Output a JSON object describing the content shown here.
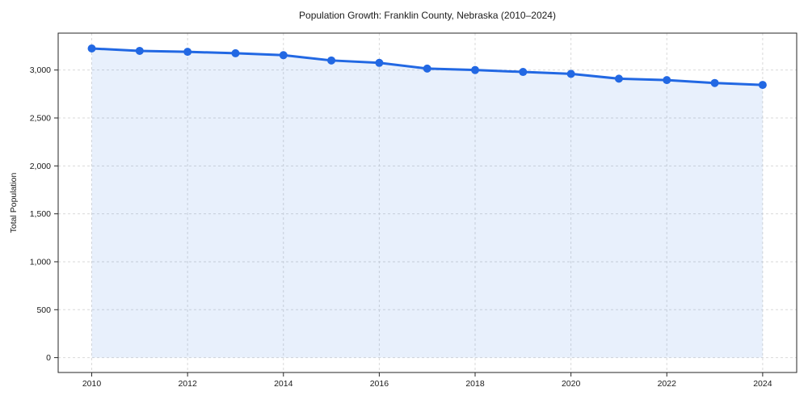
{
  "chart_data": {
    "type": "line",
    "title": "Population Growth: Franklin County, Nebraska (2010–2024)",
    "xlabel": "",
    "ylabel": "Total Population",
    "x": [
      2010,
      2011,
      2012,
      2013,
      2014,
      2015,
      2016,
      2017,
      2018,
      2019,
      2020,
      2021,
      2022,
      2023,
      2024
    ],
    "series": [
      {
        "name": "Total Population",
        "values": [
          3225,
          3200,
          3190,
          3175,
          3155,
          3100,
          3075,
          3015,
          3000,
          2980,
          2960,
          2910,
          2895,
          2865,
          2845
        ]
      }
    ],
    "xticks": [
      2010,
      2012,
      2014,
      2016,
      2018,
      2020,
      2022,
      2024
    ],
    "yticks": [
      0,
      500,
      1000,
      1500,
      2000,
      2500,
      3000
    ],
    "xlim": [
      2009.3,
      2024.71
    ],
    "ylim": [
      -155,
      3385
    ],
    "grid": true,
    "legend": false,
    "colors": {
      "line": "#2268e3",
      "marker": "#2268e3",
      "area_fill": "rgba(34, 104, 227, 0.10)",
      "gridline": "#d9d9d9",
      "axis_border": "#262626",
      "text": "#1a1a1a"
    }
  }
}
